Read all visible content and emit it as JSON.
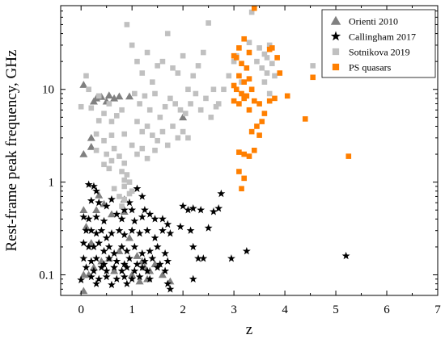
{
  "chart_data": {
    "type": "scatter",
    "xlabel": "z",
    "ylabel": "Rest-frame peak frequency, GHz",
    "xlim": [
      -0.4,
      7
    ],
    "ylim": [
      0.06,
      80
    ],
    "yscale": "log",
    "x_ticks": [
      0,
      1,
      2,
      3,
      4,
      5,
      6,
      7
    ],
    "y_ticks": [
      {
        "value": 0.1,
        "label": "0.1"
      },
      {
        "value": 1,
        "label": "1"
      },
      {
        "value": 10,
        "label": "10"
      }
    ],
    "legend_position": "top-right",
    "series": [
      {
        "name": "Orienti 2010",
        "marker": "triangle",
        "color": "#808080",
        "points": [
          [
            0.05,
            11.2
          ],
          [
            0.3,
            8.0
          ],
          [
            0.25,
            7.4
          ],
          [
            0.4,
            8.3
          ],
          [
            0.55,
            8.6
          ],
          [
            0.5,
            7.4
          ],
          [
            0.65,
            8.0
          ],
          [
            0.75,
            8.4
          ],
          [
            0.95,
            8.4
          ],
          [
            0.2,
            3.0
          ],
          [
            0.2,
            2.4
          ],
          [
            0.05,
            2.0
          ],
          [
            0.05,
            0.5
          ],
          [
            0.1,
            0.33
          ],
          [
            0.35,
            0.72
          ],
          [
            0.45,
            0.58
          ],
          [
            0.3,
            0.5
          ],
          [
            0.2,
            0.22
          ],
          [
            0.6,
            0.45
          ],
          [
            0.85,
            0.65
          ],
          [
            0.85,
            0.48
          ],
          [
            0.95,
            0.25
          ],
          [
            0.75,
            0.18
          ],
          [
            0.55,
            0.15
          ],
          [
            0.4,
            0.14
          ],
          [
            0.25,
            0.12
          ],
          [
            0.15,
            0.1
          ],
          [
            0.05,
            0.1
          ],
          [
            0.05,
            0.067
          ],
          [
            0.65,
            0.11
          ],
          [
            1.1,
            0.16
          ],
          [
            1.2,
            0.14
          ],
          [
            1.25,
            0.12
          ],
          [
            1.0,
            0.1
          ],
          [
            1.15,
            0.085
          ],
          [
            1.35,
            0.11
          ],
          [
            1.45,
            0.13
          ],
          [
            1.6,
            0.1
          ],
          [
            1.75,
            0.085
          ],
          [
            2.0,
            5.0
          ],
          [
            1.3,
            0.09
          ]
        ]
      },
      {
        "name": "Callingham 2017",
        "marker": "star",
        "color": "#000000",
        "points": [
          [
            0.15,
            0.94
          ],
          [
            0.25,
            0.9
          ],
          [
            0.3,
            0.8
          ],
          [
            0.2,
            0.63
          ],
          [
            0.35,
            0.6
          ],
          [
            0.5,
            0.55
          ],
          [
            0.6,
            0.65
          ],
          [
            0.95,
            0.6
          ],
          [
            1.1,
            0.85
          ],
          [
            1.2,
            0.7
          ],
          [
            1.25,
            0.5
          ],
          [
            0.05,
            0.42
          ],
          [
            0.15,
            0.4
          ],
          [
            0.3,
            0.42
          ],
          [
            0.45,
            0.38
          ],
          [
            0.7,
            0.45
          ],
          [
            0.8,
            0.4
          ],
          [
            0.85,
            0.5
          ],
          [
            1.0,
            0.5
          ],
          [
            1.05,
            0.38
          ],
          [
            1.2,
            0.42
          ],
          [
            1.35,
            0.45
          ],
          [
            1.45,
            0.4
          ],
          [
            1.6,
            0.4
          ],
          [
            1.7,
            0.35
          ],
          [
            0.1,
            0.3
          ],
          [
            0.2,
            0.3
          ],
          [
            0.3,
            0.28
          ],
          [
            0.4,
            0.3
          ],
          [
            0.5,
            0.25
          ],
          [
            0.6,
            0.28
          ],
          [
            0.75,
            0.3
          ],
          [
            0.85,
            0.27
          ],
          [
            1.0,
            0.3
          ],
          [
            1.15,
            0.28
          ],
          [
            1.3,
            0.3
          ],
          [
            1.45,
            0.25
          ],
          [
            1.6,
            0.3
          ],
          [
            1.75,
            0.28
          ],
          [
            0.05,
            0.22
          ],
          [
            0.15,
            0.2
          ],
          [
            0.25,
            0.2
          ],
          [
            0.35,
            0.22
          ],
          [
            0.45,
            0.18
          ],
          [
            0.55,
            0.2
          ],
          [
            0.65,
            0.17
          ],
          [
            0.8,
            0.2
          ],
          [
            0.9,
            0.18
          ],
          [
            1.05,
            0.2
          ],
          [
            1.2,
            0.17
          ],
          [
            1.35,
            0.18
          ],
          [
            1.5,
            0.2
          ],
          [
            1.65,
            0.17
          ],
          [
            0.05,
            0.15
          ],
          [
            0.2,
            0.14
          ],
          [
            0.3,
            0.15
          ],
          [
            0.45,
            0.13
          ],
          [
            0.55,
            0.15
          ],
          [
            0.7,
            0.14
          ],
          [
            0.85,
            0.13
          ],
          [
            0.95,
            0.15
          ],
          [
            1.1,
            0.13
          ],
          [
            1.25,
            0.14
          ],
          [
            1.4,
            0.15
          ],
          [
            1.55,
            0.13
          ],
          [
            1.7,
            0.14
          ],
          [
            0.1,
            0.12
          ],
          [
            0.25,
            0.11
          ],
          [
            0.4,
            0.12
          ],
          [
            0.5,
            0.11
          ],
          [
            0.65,
            0.12
          ],
          [
            0.8,
            0.11
          ],
          [
            0.9,
            0.12
          ],
          [
            1.05,
            0.11
          ],
          [
            1.2,
            0.12
          ],
          [
            1.3,
            0.11
          ],
          [
            1.5,
            0.12
          ],
          [
            1.65,
            0.11
          ],
          [
            0.2,
            0.095
          ],
          [
            0.35,
            0.09
          ],
          [
            0.5,
            0.095
          ],
          [
            0.7,
            0.09
          ],
          [
            0.85,
            0.095
          ],
          [
            1.0,
            0.09
          ],
          [
            1.15,
            0.095
          ],
          [
            1.35,
            0.09
          ],
          [
            0.0,
            0.088
          ],
          [
            0.3,
            0.08
          ],
          [
            0.6,
            0.078
          ],
          [
            0.9,
            0.08
          ],
          [
            1.7,
            0.08
          ],
          [
            1.75,
            0.07
          ],
          [
            2.0,
            0.55
          ],
          [
            2.1,
            0.5
          ],
          [
            2.2,
            0.52
          ],
          [
            2.35,
            0.5
          ],
          [
            1.95,
            0.33
          ],
          [
            2.15,
            0.3
          ],
          [
            2.6,
            0.48
          ],
          [
            2.7,
            0.52
          ],
          [
            2.75,
            0.75
          ],
          [
            2.5,
            0.32
          ],
          [
            2.2,
            0.2
          ],
          [
            2.3,
            0.15
          ],
          [
            2.4,
            0.15
          ],
          [
            2.2,
            0.09
          ],
          [
            2.95,
            0.15
          ],
          [
            3.25,
            0.18
          ],
          [
            5.2,
            0.16
          ]
        ]
      },
      {
        "name": "Sotnikova 2019",
        "marker": "square",
        "color": "#c0c0c0",
        "points": [
          [
            0.1,
            14
          ],
          [
            0.15,
            10
          ],
          [
            0.0,
            6.5
          ],
          [
            0.2,
            6.3
          ],
          [
            0.35,
            8.5
          ],
          [
            0.45,
            5.5
          ],
          [
            0.55,
            7.0
          ],
          [
            0.6,
            4.5
          ],
          [
            0.7,
            5.2
          ],
          [
            0.8,
            6.0
          ],
          [
            0.85,
            3.3
          ],
          [
            0.6,
            3.2
          ],
          [
            0.45,
            2.8
          ],
          [
            0.3,
            2.2
          ],
          [
            0.5,
            2.0
          ],
          [
            0.65,
            2.3
          ],
          [
            0.75,
            1.9
          ],
          [
            0.85,
            1.6
          ],
          [
            0.6,
            1.7
          ],
          [
            0.45,
            1.55
          ],
          [
            0.55,
            1.4
          ],
          [
            0.8,
            1.3
          ],
          [
            0.85,
            1.05
          ],
          [
            0.9,
            1.2
          ],
          [
            0.95,
            1.0
          ],
          [
            1.0,
            0.8
          ],
          [
            0.85,
            0.9
          ],
          [
            0.65,
            0.85
          ],
          [
            0.75,
            0.7
          ],
          [
            0.95,
            0.75
          ],
          [
            0.85,
            0.65
          ],
          [
            0.8,
            0.55
          ],
          [
            0.9,
            50
          ],
          [
            1.0,
            30
          ],
          [
            1.1,
            20
          ],
          [
            1.2,
            15
          ],
          [
            1.3,
            25
          ],
          [
            1.4,
            12
          ],
          [
            1.5,
            18
          ],
          [
            1.6,
            20
          ],
          [
            1.7,
            40
          ],
          [
            1.8,
            17
          ],
          [
            1.9,
            15
          ],
          [
            2.0,
            23
          ],
          [
            2.1,
            10
          ],
          [
            2.2,
            14
          ],
          [
            2.3,
            18
          ],
          [
            2.4,
            25
          ],
          [
            2.5,
            52
          ],
          [
            2.6,
            10
          ],
          [
            2.7,
            7
          ],
          [
            2.8,
            10
          ],
          [
            2.9,
            14
          ],
          [
            3.0,
            20
          ],
          [
            1.05,
            9
          ],
          [
            1.15,
            7
          ],
          [
            1.25,
            8.5
          ],
          [
            1.35,
            6
          ],
          [
            1.45,
            9
          ],
          [
            1.55,
            5
          ],
          [
            1.65,
            6.5
          ],
          [
            1.75,
            8
          ],
          [
            1.85,
            7
          ],
          [
            1.95,
            6
          ],
          [
            2.05,
            5.5
          ],
          [
            2.15,
            7
          ],
          [
            2.25,
            9
          ],
          [
            2.35,
            6
          ],
          [
            2.45,
            8
          ],
          [
            2.55,
            5
          ],
          [
            2.65,
            6.5
          ],
          [
            1.1,
            4.5
          ],
          [
            1.2,
            3.5
          ],
          [
            1.3,
            4
          ],
          [
            1.4,
            3.2
          ],
          [
            1.5,
            2.8
          ],
          [
            1.6,
            3.5
          ],
          [
            1.7,
            2.5
          ],
          [
            1.8,
            4
          ],
          [
            1.9,
            3
          ],
          [
            2.0,
            3.5
          ],
          [
            2.1,
            3
          ],
          [
            1.0,
            2.5
          ],
          [
            1.1,
            2.0
          ],
          [
            1.2,
            2.3
          ],
          [
            1.3,
            1.8
          ],
          [
            1.45,
            2.2
          ],
          [
            0.3,
            3.3
          ],
          [
            0.35,
            4.6
          ],
          [
            3.35,
            68
          ],
          [
            3.3,
            32
          ],
          [
            3.5,
            28
          ],
          [
            3.6,
            24
          ],
          [
            3.7,
            30
          ],
          [
            3.45,
            20
          ],
          [
            3.55,
            17
          ],
          [
            3.65,
            22
          ],
          [
            3.75,
            19
          ],
          [
            3.6,
            12
          ],
          [
            3.7,
            9
          ],
          [
            3.8,
            14
          ],
          [
            3.65,
            15
          ],
          [
            4.55,
            18
          ],
          [
            3.05,
            23
          ],
          [
            3.15,
            12
          ]
        ]
      },
      {
        "name": "PS quasars",
        "marker": "square",
        "color": "#ff7f00",
        "points": [
          [
            3.4,
            75
          ],
          [
            3.2,
            35
          ],
          [
            3.3,
            25
          ],
          [
            3.1,
            28
          ],
          [
            3.05,
            22
          ],
          [
            3.0,
            23
          ],
          [
            3.15,
            19
          ],
          [
            3.25,
            17
          ],
          [
            3.1,
            14
          ],
          [
            3.2,
            12
          ],
          [
            3.3,
            13
          ],
          [
            3.05,
            10
          ],
          [
            3.15,
            9
          ],
          [
            3.25,
            8.5
          ],
          [
            3.35,
            10
          ],
          [
            3.0,
            7.5
          ],
          [
            3.1,
            7
          ],
          [
            3.2,
            8
          ],
          [
            3.3,
            6
          ],
          [
            3.4,
            7.5
          ],
          [
            3.5,
            7
          ],
          [
            3.6,
            5.5
          ],
          [
            3.7,
            7.5
          ],
          [
            3.55,
            4.5
          ],
          [
            3.45,
            4
          ],
          [
            3.35,
            3.5
          ],
          [
            3.5,
            3.2
          ],
          [
            3.7,
            27
          ],
          [
            3.75,
            28
          ],
          [
            3.85,
            22
          ],
          [
            3.9,
            15
          ],
          [
            4.05,
            8.5
          ],
          [
            3.8,
            8
          ],
          [
            4.4,
            4.8
          ],
          [
            4.55,
            13.5
          ],
          [
            5.25,
            1.9
          ],
          [
            3.1,
            2.1
          ],
          [
            3.2,
            2.0
          ],
          [
            3.3,
            1.9
          ],
          [
            3.4,
            2.2
          ],
          [
            3.1,
            1.3
          ],
          [
            3.2,
            1.1
          ],
          [
            3.15,
            0.85
          ],
          [
            3.0,
            11
          ]
        ]
      }
    ]
  }
}
